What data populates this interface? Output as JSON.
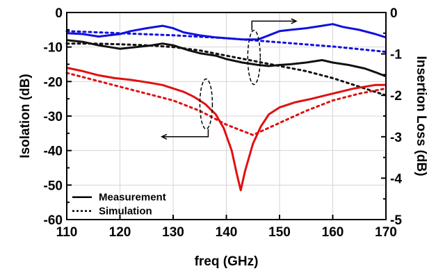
{
  "chart_data": {
    "type": "line",
    "xlabel": "freq (GHz)",
    "ylabel_left": "Isolation (dB)",
    "ylabel_right": "Insertion Loss (dB)",
    "xlim": [
      110,
      170
    ],
    "ylim_left": [
      -60,
      0
    ],
    "ylim_right": [
      -5,
      0
    ],
    "x_ticks": [
      "110",
      "120",
      "130",
      "140",
      "150",
      "160",
      "170"
    ],
    "y_ticks_left": [
      "0",
      "-10",
      "-20",
      "-30",
      "-40",
      "-50",
      "-60"
    ],
    "y_ticks_right": [
      "0",
      "-1",
      "-2",
      "-3",
      "-4",
      "-5"
    ],
    "grid": true,
    "legend_position": "bottom-left",
    "legend": [
      {
        "label": "Measurement",
        "style": "solid"
      },
      {
        "label": "Simulation",
        "style": "dotted"
      }
    ],
    "colors": {
      "blue": "#1010e0",
      "black": "#111111",
      "red": "#e01010",
      "grid": "#d4d4d4",
      "axis": "#000000"
    },
    "series": [
      {
        "color": "blue",
        "style": "solid",
        "axis": "right",
        "x": [
          110,
          113,
          116,
          118,
          120,
          122,
          125,
          128,
          130,
          132,
          135,
          138,
          140,
          143,
          146,
          148,
          150,
          152,
          155,
          158,
          160,
          162,
          165,
          168,
          170
        ],
        "y": [
          -0.5,
          -0.52,
          -0.58,
          -0.55,
          -0.52,
          -0.45,
          -0.38,
          -0.32,
          -0.38,
          -0.48,
          -0.55,
          -0.6,
          -0.62,
          -0.65,
          -0.65,
          -0.55,
          -0.45,
          -0.42,
          -0.38,
          -0.32,
          -0.28,
          -0.35,
          -0.42,
          -0.52,
          -0.6
        ]
      },
      {
        "color": "blue",
        "style": "dotted",
        "axis": "right",
        "x": [
          110,
          120,
          130,
          140,
          150,
          160,
          170
        ],
        "y": [
          -0.45,
          -0.5,
          -0.55,
          -0.62,
          -0.72,
          -0.82,
          -0.95
        ]
      },
      {
        "color": "black",
        "style": "solid",
        "axis": "left",
        "x": [
          110,
          113,
          116,
          118,
          120,
          123,
          126,
          128,
          130,
          133,
          135,
          138,
          140,
          143,
          146,
          148,
          150,
          152,
          155,
          158,
          160,
          163,
          166,
          168,
          170
        ],
        "y": [
          -8,
          -8.5,
          -9.5,
          -10,
          -10.5,
          -10,
          -9.5,
          -9,
          -9.5,
          -11,
          -11.8,
          -12.5,
          -13.5,
          -14.5,
          -15.2,
          -15.5,
          -15.2,
          -15,
          -14.5,
          -13.8,
          -14.5,
          -15.2,
          -16.2,
          -17.3,
          -18.5
        ]
      },
      {
        "color": "black",
        "style": "dotted",
        "axis": "left",
        "x": [
          110,
          115,
          120,
          125,
          130,
          135,
          140,
          145,
          150,
          155,
          160,
          165,
          170
        ],
        "y": [
          -9,
          -9,
          -9.2,
          -9.5,
          -10,
          -11,
          -12.5,
          -14,
          -15.5,
          -17,
          -19,
          -21.5,
          -24
        ]
      },
      {
        "color": "red",
        "style": "solid",
        "axis": "left",
        "x": [
          110,
          113,
          116,
          119,
          122,
          125,
          128,
          130,
          132,
          134,
          136,
          138,
          139.5,
          141,
          142,
          142.7,
          143.5,
          145,
          146.5,
          148,
          150,
          153,
          156,
          160,
          164,
          168,
          170
        ],
        "y": [
          -16,
          -17,
          -18.2,
          -19,
          -19.5,
          -20.2,
          -21,
          -22,
          -23,
          -24.5,
          -26.5,
          -29.5,
          -33.5,
          -40,
          -47,
          -51.5,
          -46,
          -38,
          -33,
          -29.5,
          -27.5,
          -26,
          -25,
          -23.5,
          -22,
          -21,
          -21
        ]
      },
      {
        "color": "red",
        "style": "dotted",
        "axis": "left",
        "x": [
          110,
          115,
          120,
          125,
          130,
          135,
          140,
          145,
          150,
          155,
          160,
          165,
          170
        ],
        "y": [
          -17.5,
          -19.5,
          -21.5,
          -23.5,
          -25.5,
          -28.5,
          -32.5,
          -35.5,
          -32,
          -28.5,
          -25.5,
          -23.5,
          -22
        ]
      }
    ]
  }
}
